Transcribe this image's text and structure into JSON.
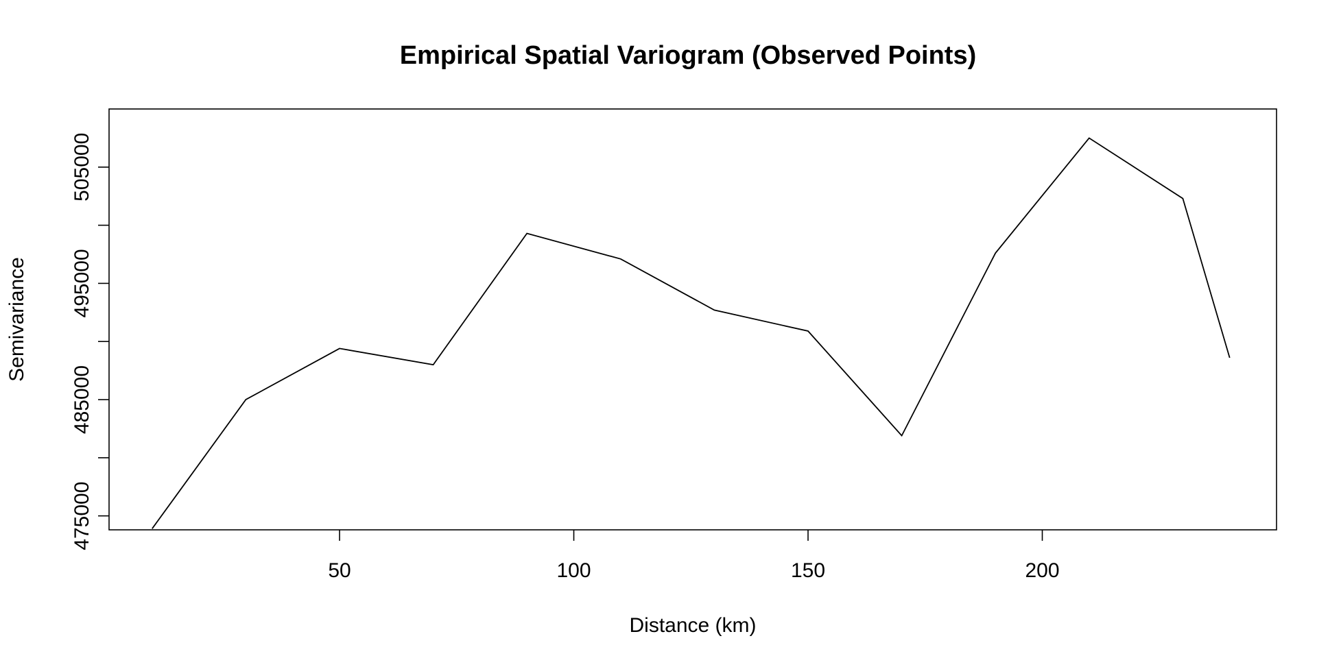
{
  "chart_data": {
    "type": "line",
    "title": "Empirical Spatial Variogram (Observed Points)",
    "xlabel": "Distance (km)",
    "ylabel": "Semivariance",
    "xlim": [
      0.8,
      250
    ],
    "ylim": [
      473800,
      510000
    ],
    "x_ticks": [
      50,
      100,
      150,
      200
    ],
    "x_tick_labels": [
      "50",
      "100",
      "150",
      "200"
    ],
    "y_ticks": [
      475000,
      480000,
      485000,
      490000,
      495000,
      500000,
      505000
    ],
    "y_tick_labels": [
      "475000",
      "",
      "485000",
      "",
      "495000",
      "",
      "505000"
    ],
    "grid": false,
    "legend": "none",
    "line_color": "#000000",
    "series": [
      {
        "x": [
          10,
          30,
          50,
          70,
          90,
          110,
          130,
          150,
          170,
          190,
          210,
          230,
          240
        ],
        "values": [
          473900,
          485000,
          489400,
          488000,
          499300,
          497100,
          492700,
          490900,
          481900,
          497600,
          507500,
          502300,
          488600
        ]
      }
    ]
  }
}
